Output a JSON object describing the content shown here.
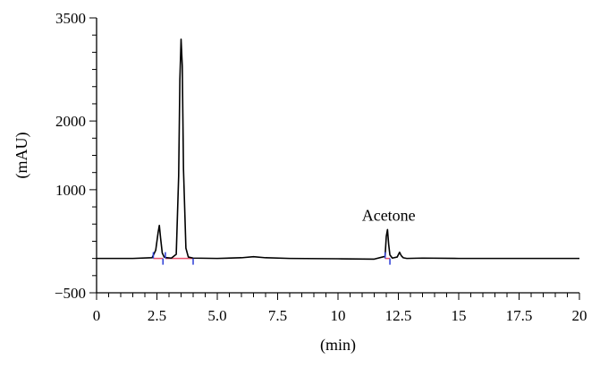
{
  "chart_data": {
    "type": "line",
    "title": "",
    "xlabel": "(min)",
    "ylabel": "(mAU)",
    "xlim": [
      0,
      20
    ],
    "ylim": [
      -500,
      3500
    ],
    "x_ticks": [
      0,
      2.5,
      5,
      7.5,
      10,
      12.5,
      15,
      17.5,
      20
    ],
    "x_tick_labels": [
      "0",
      "2.5",
      "5.0",
      "7.5",
      "10",
      "12.5",
      "15",
      "17.5",
      "20"
    ],
    "y_labeled_ticks": [
      -500,
      1000,
      2000,
      3500
    ],
    "y_tick_labels": [
      "−500",
      "1000",
      "2000",
      "3500"
    ],
    "grid": false,
    "series": [
      {
        "color": "#000000",
        "x": [
          0,
          1.5,
          2.3,
          2.45,
          2.55,
          2.6,
          2.65,
          2.72,
          2.8,
          2.9,
          3.1,
          3.3,
          3.4,
          3.45,
          3.5,
          3.55,
          3.6,
          3.7,
          3.8,
          4.0,
          5.0,
          6.0,
          6.5,
          7.0,
          8.0,
          10.0,
          11.5,
          11.95,
          12.0,
          12.05,
          12.1,
          12.15,
          12.25,
          12.45,
          12.55,
          12.62,
          12.7,
          12.85,
          13.5,
          15.0,
          17.5,
          20.0
        ],
        "y": [
          0,
          0,
          10,
          120,
          380,
          480,
          300,
          80,
          20,
          10,
          5,
          60,
          1200,
          2600,
          3190,
          2800,
          1300,
          150,
          20,
          5,
          0,
          10,
          25,
          10,
          0,
          -5,
          -10,
          30,
          320,
          420,
          200,
          50,
          5,
          20,
          90,
          40,
          10,
          0,
          5,
          0,
          0,
          0
        ]
      }
    ],
    "annotations": [
      {
        "text": "Acetone",
        "x": 12.1,
        "y": 550
      }
    ],
    "baseline_segments": [
      {
        "color": "#e8506a",
        "x_start": 2.35,
        "x_end": 2.75
      },
      {
        "color": "#e8506a",
        "x_start": 2.85,
        "x_end": 4.0
      },
      {
        "color": "#e8506a",
        "x_start": 11.95,
        "x_end": 12.15
      }
    ],
    "integration_markers": [
      {
        "color": "#2b3cd6",
        "x": 2.35,
        "direction": "up"
      },
      {
        "color": "#2b3cd6",
        "x": 2.75,
        "direction": "down"
      },
      {
        "color": "#2b3cd6",
        "x": 2.85,
        "direction": "up"
      },
      {
        "color": "#2b3cd6",
        "x": 4.0,
        "direction": "down"
      },
      {
        "color": "#2b3cd6",
        "x": 11.95,
        "direction": "up"
      },
      {
        "color": "#2b3cd6",
        "x": 12.15,
        "direction": "down"
      }
    ],
    "colors": {
      "axis": "#000000",
      "signal": "#000000",
      "baseline_fit": "#e8506a",
      "markers": "#2b3cd6"
    }
  }
}
